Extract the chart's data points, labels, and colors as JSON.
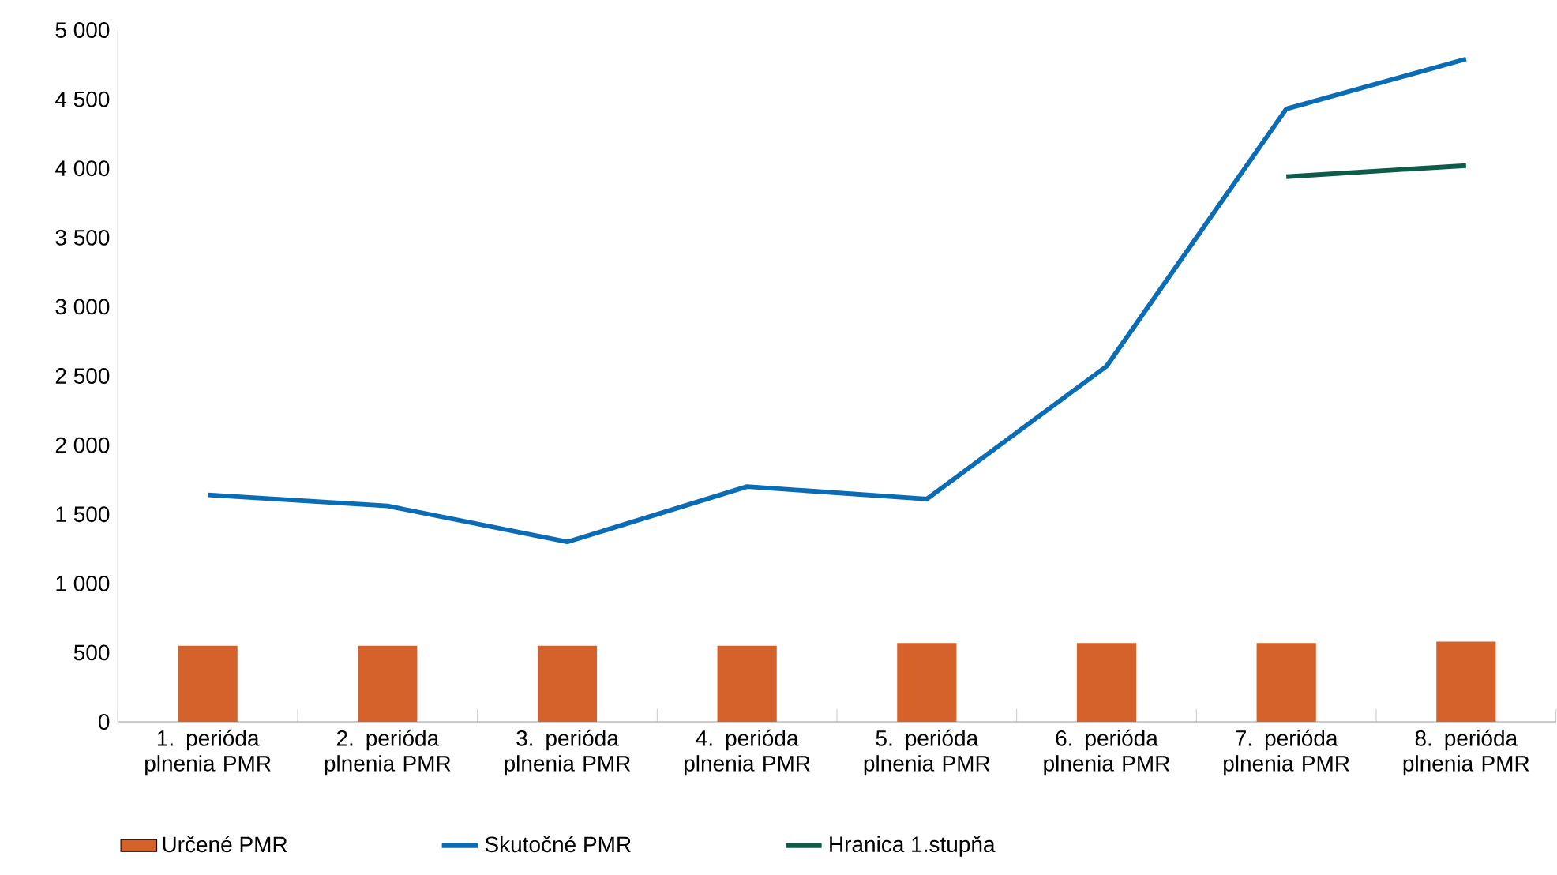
{
  "chart_data": {
    "type": "line",
    "categories": [
      "1. perióda plnenia PMR",
      "2. perióda plnenia PMR",
      "3. perióda plnenia PMR",
      "4. perióda plnenia PMR",
      "5. perióda plnenia PMR",
      "6. perióda plnenia PMR",
      "7. perióda plnenia PMR",
      "8. perióda plnenia PMR"
    ],
    "ylim": [
      0,
      5000
    ],
    "yticks": [
      {
        "value": 0,
        "label": "0"
      },
      {
        "value": 500,
        "label": "500"
      },
      {
        "value": 1000,
        "label": "1 000"
      },
      {
        "value": 1500,
        "label": "1 500"
      },
      {
        "value": 2000,
        "label": "2 000"
      },
      {
        "value": 2500,
        "label": "2 500"
      },
      {
        "value": 3000,
        "label": "3 000"
      },
      {
        "value": 3500,
        "label": "3 500"
      },
      {
        "value": 4000,
        "label": "4 000"
      },
      {
        "value": 4500,
        "label": "4 500"
      },
      {
        "value": 5000,
        "label": "5 000"
      }
    ],
    "legend": "bottom",
    "series": [
      {
        "name": "Určené PMR",
        "type": "bar",
        "color": "#d4622a",
        "values": [
          550,
          550,
          550,
          550,
          570,
          570,
          570,
          580
        ]
      },
      {
        "name": "Skutočné PMR",
        "color": "#0a6cb4",
        "values": [
          1640,
          1560,
          1300,
          1700,
          1610,
          2570,
          4430,
          4790
        ]
      },
      {
        "name": "Hranica 1.stupňa",
        "color": "#0d5c4a",
        "values": [
          null,
          null,
          null,
          null,
          null,
          null,
          3940,
          4020
        ]
      }
    ]
  }
}
